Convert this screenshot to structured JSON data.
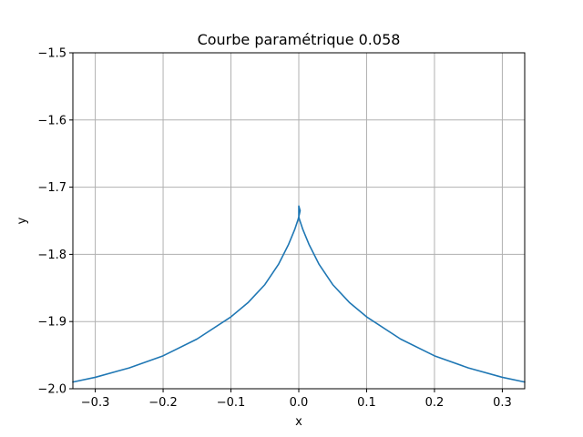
{
  "chart_data": {
    "type": "line",
    "title": "Courbe paramétrique 0.058",
    "xlabel": "x",
    "ylabel": "y",
    "xlim": [
      -0.333,
      0.333
    ],
    "ylim": [
      -2.0,
      -1.5
    ],
    "grid": true,
    "x_ticks": [
      -0.3,
      -0.2,
      -0.1,
      0.0,
      0.1,
      0.2,
      0.3
    ],
    "x_tick_labels": [
      "−0.3",
      "−0.2",
      "−0.1",
      "0.0",
      "0.1",
      "0.2",
      "0.3"
    ],
    "y_ticks": [
      -2.0,
      -1.9,
      -1.8,
      -1.7,
      -1.6,
      -1.5
    ],
    "y_tick_labels": [
      "−2.0",
      "−1.9",
      "−1.8",
      "−1.7",
      "−1.6",
      "−1.5"
    ],
    "series": [
      {
        "color": "#1f77b4",
        "points": [
          [
            -0.333,
            -1.99
          ],
          [
            -0.3,
            -1.983
          ],
          [
            -0.25,
            -1.969
          ],
          [
            -0.2,
            -1.951
          ],
          [
            -0.15,
            -1.926
          ],
          [
            -0.1,
            -1.893
          ],
          [
            -0.075,
            -1.872
          ],
          [
            -0.05,
            -1.845
          ],
          [
            -0.03,
            -1.815
          ],
          [
            -0.015,
            -1.785
          ],
          [
            -0.006,
            -1.763
          ],
          [
            -0.001,
            -1.748
          ],
          [
            0.0,
            -1.744
          ],
          [
            0.0,
            -1.728
          ],
          [
            0.002,
            -1.735
          ],
          [
            0.0,
            -1.744
          ],
          [
            0.001,
            -1.748
          ],
          [
            0.006,
            -1.763
          ],
          [
            0.015,
            -1.785
          ],
          [
            0.03,
            -1.815
          ],
          [
            0.05,
            -1.845
          ],
          [
            0.075,
            -1.872
          ],
          [
            0.1,
            -1.893
          ],
          [
            0.15,
            -1.926
          ],
          [
            0.2,
            -1.951
          ],
          [
            0.25,
            -1.969
          ],
          [
            0.3,
            -1.983
          ],
          [
            0.333,
            -1.99
          ]
        ]
      }
    ]
  }
}
